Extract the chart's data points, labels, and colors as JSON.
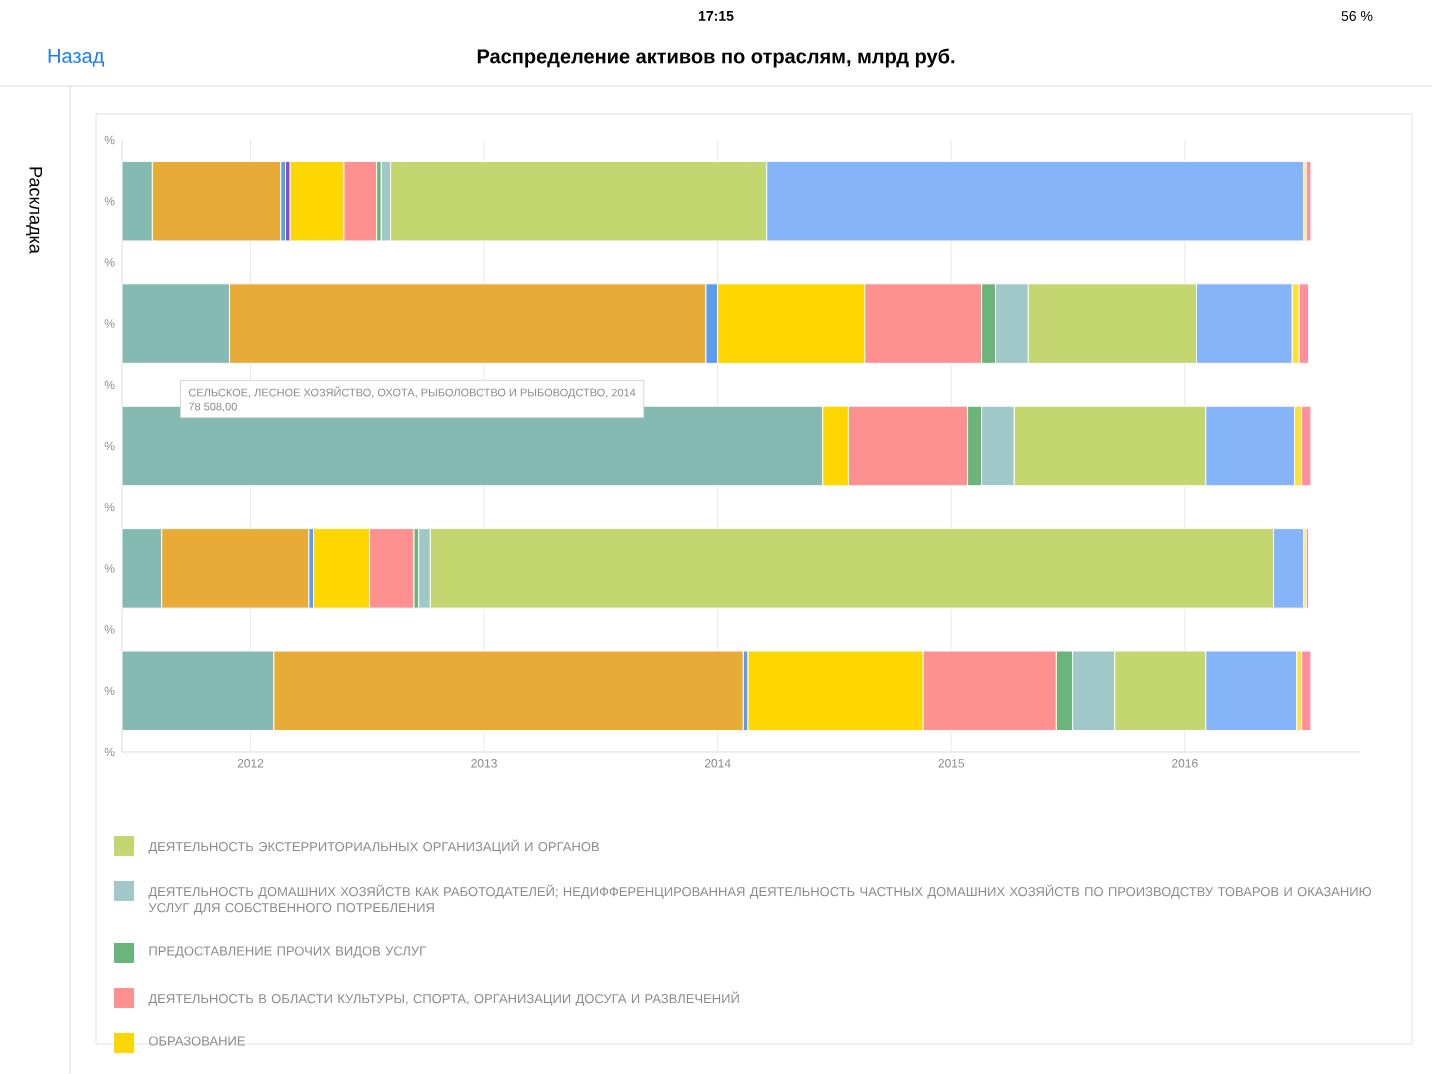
{
  "chart_data": {
    "type": "bar",
    "orientation": "horizontal",
    "title": "Распределение активов по отраслям, млрд руб.",
    "categories": [
      "%",
      "%",
      "%",
      "%",
      "%",
      "%",
      "%",
      "%",
      "%",
      "%",
      "%"
    ],
    "series": [
      {
        "color": "#85bab3",
        "base": [
          null,
          2011.45,
          null,
          2011.45,
          null,
          2011.45,
          null,
          2011.45,
          null,
          2011.45,
          null
        ],
        "values": [
          null,
          0.13,
          null,
          0.46,
          null,
          3.0,
          null,
          0.17,
          null,
          0.65,
          null
        ]
      },
      {
        "color": "#e9ab37",
        "base": [
          null,
          2011.58,
          null,
          2011.91,
          null,
          null,
          null,
          2011.62,
          null,
          2012.1,
          null
        ],
        "values": [
          null,
          0.55,
          null,
          2.04,
          null,
          null,
          null,
          0.63,
          null,
          2.01,
          null
        ]
      },
      {
        "color": "#5b9bf0",
        "base": [
          null,
          2012.13,
          null,
          2013.95,
          null,
          null,
          null,
          2012.25,
          null,
          2014.11,
          null
        ],
        "values": [
          null,
          0.02,
          null,
          0.05,
          null,
          null,
          null,
          0.02,
          null,
          0.02,
          null
        ]
      },
      {
        "color": "#8a4fd0",
        "base": [
          null,
          2012.15,
          null,
          null,
          null,
          null,
          null,
          null,
          null,
          null,
          null
        ],
        "values": [
          null,
          0.02,
          null,
          null,
          null,
          null,
          null,
          null,
          null,
          null,
          null
        ]
      },
      {
        "name": "ОБРАЗОВАНИЕ",
        "color": "#ffd700",
        "base": [
          null,
          2012.17,
          null,
          2014.0,
          null,
          2014.45,
          null,
          2012.27,
          null,
          2014.13,
          null
        ],
        "values": [
          null,
          0.23,
          null,
          0.63,
          null,
          0.11,
          null,
          0.24,
          null,
          0.75,
          null
        ]
      },
      {
        "name": "ДЕЯТЕЛЬНОСТЬ В ОБЛАСТИ КУЛЬТУРЫ, СПОРТА, ОРГАНИЗАЦИИ ДОСУГА И РАЗВЛЕЧЕНИЙ",
        "color": "#ff9090",
        "base": [
          null,
          2012.4,
          null,
          2014.63,
          null,
          2014.56,
          null,
          2012.51,
          null,
          2014.88,
          null
        ],
        "values": [
          null,
          0.14,
          null,
          0.5,
          null,
          0.51,
          null,
          0.19,
          null,
          0.57,
          null
        ]
      },
      {
        "name": "ПРЕДОСТАВЛЕНИЕ ПРОЧИХ ВИДОВ УСЛУГ",
        "color": "#6ab57a",
        "base": [
          null,
          2012.54,
          null,
          2015.13,
          null,
          2015.07,
          null,
          2012.7,
          null,
          2015.45,
          null
        ],
        "values": [
          null,
          0.02,
          null,
          0.06,
          null,
          0.06,
          null,
          0.02,
          null,
          0.07,
          null
        ]
      },
      {
        "name": "ДЕЯТЕЛЬНОСТЬ ДОМАШНИХ ХОЗЯЙСТВ КАК РАБОТОДАТЕЛЕЙ; НЕДИФФЕРЕНЦИРОВАННАЯ ДЕЯТЕЛЬНОСТЬ ЧАСТНЫХ ДОМАШНИХ ХОЗЯЙСТВ ПО ПРОИЗВОДСТВУ ТОВАРОВ И ОКАЗАНИЮ УСЛУГ ДЛЯ СОБСТВЕННОГО ПОТРЕБЛЕНИЯ",
        "color": "#a0c8c8",
        "base": [
          null,
          2012.56,
          null,
          2015.19,
          null,
          2015.13,
          null,
          2012.72,
          null,
          2015.52,
          null
        ],
        "values": [
          null,
          0.04,
          null,
          0.14,
          null,
          0.14,
          null,
          0.05,
          null,
          0.18,
          null
        ]
      },
      {
        "name": "ДЕЯТЕЛЬНОСТЬ ЭКСТЕРРИТОРИАЛЬНЫХ ОРГАНИЗАЦИЙ И ОРГАНОВ",
        "color": "#c4d670",
        "base": [
          null,
          2012.6,
          null,
          2015.33,
          null,
          2015.27,
          null,
          2012.77,
          null,
          2015.7,
          null
        ],
        "values": [
          null,
          1.61,
          null,
          0.72,
          null,
          0.82,
          null,
          3.61,
          null,
          0.39,
          null
        ]
      },
      {
        "color": "#86b4f8",
        "base": [
          null,
          2014.21,
          null,
          2016.05,
          null,
          2016.09,
          null,
          2016.38,
          null,
          2016.09,
          null
        ],
        "values": [
          null,
          2.3,
          null,
          0.41,
          null,
          0.38,
          null,
          0.13,
          null,
          0.39,
          null
        ]
      },
      {
        "color": "#ffe033",
        "base": [
          null,
          2016.51,
          null,
          2016.46,
          null,
          2016.47,
          null,
          2016.51,
          null,
          2016.48,
          null
        ],
        "values": [
          null,
          0.01,
          null,
          0.03,
          null,
          0.03,
          null,
          0.01,
          null,
          0.02,
          null
        ]
      },
      {
        "color": "#ff8fa0",
        "base": [
          null,
          2016.52,
          null,
          2016.49,
          null,
          2016.5,
          null,
          2016.52,
          null,
          2016.5,
          null
        ],
        "values": [
          null,
          0.02,
          null,
          0.04,
          null,
          0.04,
          null,
          0.01,
          null,
          0.04,
          null
        ]
      }
    ],
    "xlim": [
      2011.45,
      2016.75
    ],
    "xticks": [
      2012,
      2013,
      2014,
      2015,
      2016
    ],
    "grid": "x",
    "legend": "bottom",
    "annotations": [
      "СЕЛЬСКОЕ, ЛЕСНОЕ ХОЗЯЙСТВО, ОХОТА, РЫБОЛОВСТВО И РЫБОВОДСТВО, 2014",
      "78 508,00",
      "Назад",
      "Раскладка",
      "17:15",
      "56 %"
    ]
  }
}
